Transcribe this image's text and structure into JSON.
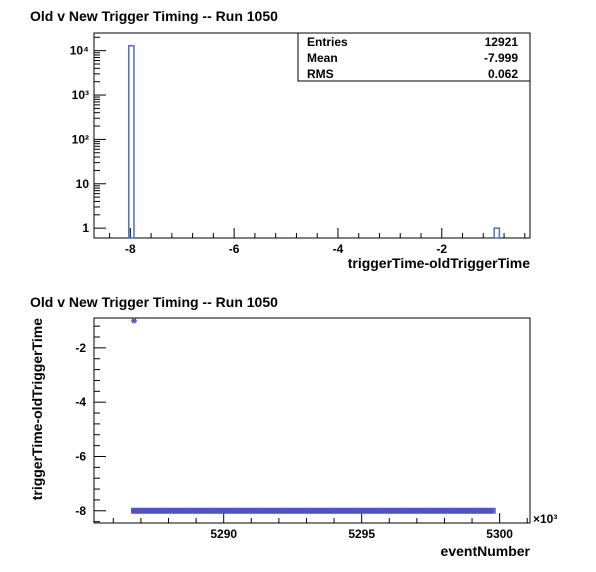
{
  "colors": {
    "histogram": "#4f6fbf",
    "scatter": "#5050c8",
    "axis": "#000000"
  },
  "chart_data": [
    {
      "type": "bar",
      "title": "Old v New Trigger Timing -- Run 1050",
      "xlabel": "triggerTime-oldTriggerTime",
      "ylabel": "",
      "xlim": [
        -8.7,
        -0.3
      ],
      "ylim": [
        0.6,
        25000
      ],
      "log_y": true,
      "xticks": [
        -8,
        -6,
        -4,
        -2
      ],
      "xtick_labels": [
        "-8",
        "-6",
        "-4",
        "-2"
      ],
      "yticks": [
        1,
        10,
        100,
        1000,
        10000
      ],
      "ytick_labels": [
        "1",
        "10",
        "10²",
        "10³",
        "10⁴"
      ],
      "bins": [
        {
          "x0": -8.03,
          "x1": -7.93,
          "value": 12905
        },
        {
          "x0": -0.99,
          "x1": -0.89,
          "value": 1
        }
      ],
      "stats": {
        "Entries": "12921",
        "Mean": "-7.999",
        "RMS": "0.062"
      },
      "grid": false
    },
    {
      "type": "scatter",
      "title": "Old v New Trigger Timing -- Run 1050",
      "xlabel": "eventNumber",
      "ylabel": "triggerTime-oldTriggerTime",
      "x_multiplier": "×10³",
      "xlim": [
        5285.3,
        5301.1
      ],
      "ylim": [
        -8.45,
        -0.9
      ],
      "xticks": [
        5290,
        5295,
        5300
      ],
      "xtick_labels": [
        "5290",
        "5295",
        "5300"
      ],
      "yticks": [
        -8,
        -6,
        -4,
        -2
      ],
      "ytick_labels": [
        "-8",
        "-6",
        "-4",
        "-2"
      ],
      "points": [
        {
          "x": 5286.75,
          "y": -1.0
        }
      ],
      "band": {
        "x_start": 5286.75,
        "x_end": 5299.75,
        "y": -8.0,
        "count": 12920
      },
      "grid": false
    }
  ]
}
